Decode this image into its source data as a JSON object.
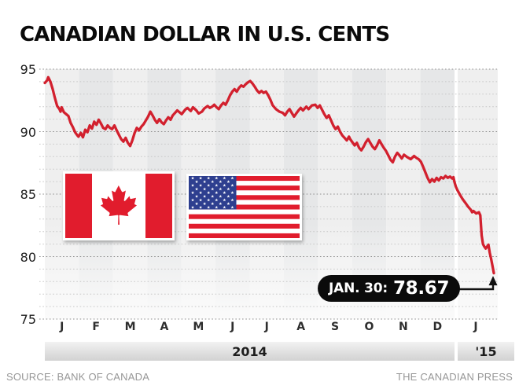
{
  "header": {
    "title": "CANADIAN DOLLAR IN U.S. CENTS"
  },
  "footer": {
    "source": "SOURCE: BANK OF CANADA",
    "credit": "THE CANADIAN PRESS"
  },
  "annotation": {
    "label": "JAN. 30:",
    "value": "78.67"
  },
  "icons": [
    "canada-flag",
    "us-flag"
  ],
  "colors": {
    "line": "#d2202e",
    "flag_red": "#e11c2d",
    "flag_blue": "#2e3f8f",
    "annotation_bg": "#0b0b0b",
    "annotation_text": "#ffffff",
    "grid_minor": "#c7c7c7",
    "grid_major": "#8f8f8f",
    "band_light": "#efefef",
    "band_dark": "#e6e7e8"
  },
  "chart_data": {
    "type": "line",
    "title": "CANADIAN DOLLAR IN U.S. CENTS",
    "xlabel": "",
    "ylabel": "",
    "ylim": [
      75,
      95
    ],
    "y_ticks": [
      95,
      90,
      85,
      80,
      75
    ],
    "minor_grid_step": 1,
    "grid": "dotted horizontal, alternating month bands",
    "x_tick_labels": [
      "J",
      "F",
      "M",
      "A",
      "M",
      "J",
      "J",
      "A",
      "S",
      "O",
      "N",
      "D",
      "J"
    ],
    "year_labels": [
      "2014",
      "'15"
    ],
    "x_start": "2014-01-01",
    "x_end": "2015-01-30",
    "annotation": "JAN. 30: 78.67",
    "last_value": 78.67,
    "series": [
      {
        "name": "Canadian dollar in U.S. cents",
        "points": [
          [
            0,
            93.9
          ],
          [
            2,
            94.1
          ],
          [
            3,
            94.35
          ],
          [
            5,
            94.0
          ],
          [
            7,
            93.4
          ],
          [
            9,
            92.7
          ],
          [
            11,
            92.05
          ],
          [
            13,
            91.8
          ],
          [
            14,
            91.6
          ],
          [
            15,
            91.95
          ],
          [
            17,
            91.55
          ],
          [
            19,
            91.4
          ],
          [
            21,
            91.25
          ],
          [
            23,
            90.7
          ],
          [
            25,
            90.35
          ],
          [
            27,
            89.95
          ],
          [
            29,
            89.7
          ],
          [
            30,
            89.6
          ],
          [
            32,
            89.9
          ],
          [
            34,
            89.55
          ],
          [
            36,
            90.15
          ],
          [
            38,
            89.95
          ],
          [
            40,
            90.5
          ],
          [
            42,
            90.25
          ],
          [
            44,
            90.8
          ],
          [
            46,
            90.55
          ],
          [
            48,
            90.95
          ],
          [
            50,
            90.65
          ],
          [
            52,
            90.3
          ],
          [
            54,
            90.2
          ],
          [
            56,
            90.5
          ],
          [
            58,
            90.3
          ],
          [
            60,
            90.2
          ],
          [
            62,
            90.5
          ],
          [
            64,
            90.1
          ],
          [
            66,
            89.75
          ],
          [
            68,
            89.4
          ],
          [
            70,
            89.2
          ],
          [
            72,
            89.5
          ],
          [
            74,
            89.1
          ],
          [
            76,
            88.85
          ],
          [
            78,
            89.3
          ],
          [
            80,
            89.9
          ],
          [
            82,
            90.3
          ],
          [
            84,
            90.1
          ],
          [
            86,
            90.4
          ],
          [
            88,
            90.6
          ],
          [
            90,
            90.9
          ],
          [
            92,
            91.2
          ],
          [
            94,
            91.6
          ],
          [
            96,
            91.3
          ],
          [
            98,
            90.95
          ],
          [
            100,
            90.7
          ],
          [
            102,
            91.0
          ],
          [
            104,
            90.75
          ],
          [
            106,
            90.6
          ],
          [
            108,
            90.9
          ],
          [
            110,
            91.15
          ],
          [
            112,
            90.95
          ],
          [
            114,
            91.3
          ],
          [
            116,
            91.5
          ],
          [
            118,
            91.7
          ],
          [
            120,
            91.55
          ],
          [
            122,
            91.4
          ],
          [
            125,
            91.75
          ],
          [
            127,
            91.9
          ],
          [
            130,
            91.65
          ],
          [
            132,
            91.95
          ],
          [
            135,
            91.7
          ],
          [
            137,
            91.45
          ],
          [
            140,
            91.6
          ],
          [
            142,
            91.85
          ],
          [
            145,
            92.05
          ],
          [
            147,
            91.9
          ],
          [
            149,
            92.0
          ],
          [
            151,
            92.15
          ],
          [
            153,
            91.95
          ],
          [
            155,
            91.8
          ],
          [
            157,
            92.1
          ],
          [
            159,
            92.3
          ],
          [
            161,
            92.15
          ],
          [
            163,
            92.5
          ],
          [
            165,
            92.9
          ],
          [
            167,
            93.2
          ],
          [
            169,
            93.4
          ],
          [
            171,
            93.2
          ],
          [
            173,
            93.5
          ],
          [
            175,
            93.7
          ],
          [
            177,
            93.6
          ],
          [
            179,
            93.8
          ],
          [
            181,
            93.95
          ],
          [
            183,
            94.05
          ],
          [
            185,
            93.85
          ],
          [
            187,
            93.6
          ],
          [
            189,
            93.3
          ],
          [
            191,
            93.1
          ],
          [
            193,
            93.25
          ],
          [
            195,
            93.1
          ],
          [
            197,
            93.2
          ],
          [
            199,
            92.9
          ],
          [
            201,
            92.55
          ],
          [
            203,
            92.1
          ],
          [
            206,
            91.8
          ],
          [
            209,
            91.6
          ],
          [
            212,
            91.5
          ],
          [
            214,
            91.3
          ],
          [
            216,
            91.6
          ],
          [
            218,
            91.8
          ],
          [
            220,
            91.5
          ],
          [
            222,
            91.2
          ],
          [
            224,
            91.45
          ],
          [
            226,
            91.7
          ],
          [
            228,
            91.9
          ],
          [
            230,
            91.7
          ],
          [
            233,
            92.0
          ],
          [
            235,
            91.8
          ],
          [
            238,
            92.1
          ],
          [
            241,
            92.15
          ],
          [
            243,
            91.9
          ],
          [
            245,
            92.1
          ],
          [
            247,
            91.75
          ],
          [
            249,
            91.4
          ],
          [
            251,
            91.1
          ],
          [
            253,
            91.3
          ],
          [
            255,
            90.9
          ],
          [
            257,
            90.5
          ],
          [
            259,
            90.2
          ],
          [
            261,
            90.4
          ],
          [
            263,
            90.0
          ],
          [
            265,
            89.7
          ],
          [
            267,
            89.5
          ],
          [
            269,
            89.3
          ],
          [
            271,
            89.6
          ],
          [
            272,
            89.4
          ],
          [
            274,
            89.15
          ],
          [
            276,
            88.9
          ],
          [
            278,
            89.1
          ],
          [
            280,
            88.7
          ],
          [
            282,
            88.5
          ],
          [
            284,
            88.8
          ],
          [
            286,
            89.15
          ],
          [
            288,
            89.4
          ],
          [
            290,
            89.1
          ],
          [
            292,
            88.8
          ],
          [
            294,
            88.6
          ],
          [
            296,
            88.9
          ],
          [
            298,
            89.3
          ],
          [
            300,
            89.0
          ],
          [
            302,
            88.7
          ],
          [
            304,
            88.45
          ],
          [
            306,
            88.1
          ],
          [
            308,
            87.75
          ],
          [
            310,
            87.55
          ],
          [
            312,
            88.0
          ],
          [
            314,
            88.3
          ],
          [
            316,
            88.1
          ],
          [
            318,
            87.85
          ],
          [
            320,
            88.15
          ],
          [
            323,
            87.95
          ],
          [
            326,
            87.8
          ],
          [
            329,
            88.05
          ],
          [
            331,
            87.9
          ],
          [
            333,
            87.8
          ],
          [
            335,
            87.6
          ],
          [
            337,
            87.2
          ],
          [
            339,
            86.75
          ],
          [
            341,
            86.3
          ],
          [
            343,
            85.95
          ],
          [
            345,
            86.2
          ],
          [
            347,
            86.0
          ],
          [
            349,
            86.3
          ],
          [
            351,
            86.1
          ],
          [
            353,
            86.35
          ],
          [
            355,
            86.25
          ],
          [
            357,
            86.45
          ],
          [
            359,
            86.3
          ],
          [
            361,
            86.4
          ],
          [
            363,
            86.25
          ],
          [
            364,
            86.35
          ],
          [
            365,
            85.95
          ],
          [
            366,
            85.6
          ],
          [
            367,
            85.35
          ],
          [
            369,
            84.95
          ],
          [
            371,
            84.6
          ],
          [
            373,
            84.3
          ],
          [
            375,
            84.0
          ],
          [
            377,
            83.75
          ],
          [
            378,
            83.55
          ],
          [
            379,
            83.65
          ],
          [
            381,
            83.45
          ],
          [
            383,
            83.55
          ],
          [
            384,
            83.3
          ],
          [
            385,
            81.7
          ],
          [
            386,
            81.0
          ],
          [
            387,
            80.8
          ],
          [
            388,
            80.65
          ],
          [
            389,
            80.8
          ],
          [
            390,
            80.95
          ],
          [
            391,
            80.3
          ],
          [
            392,
            79.8
          ],
          [
            393,
            79.25
          ],
          [
            394,
            78.67
          ]
        ]
      }
    ]
  }
}
